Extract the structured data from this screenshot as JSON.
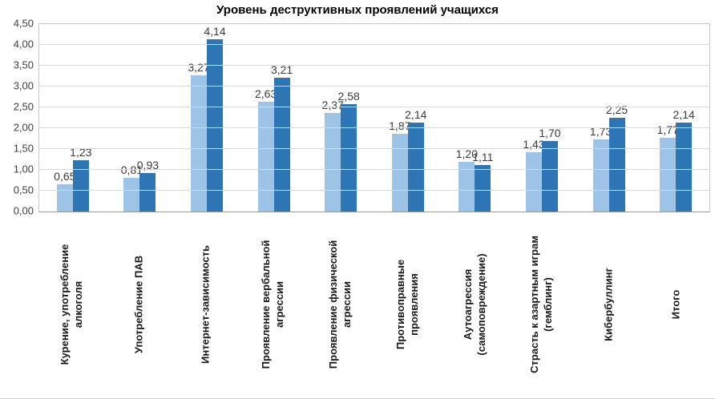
{
  "chart_data": {
    "type": "bar",
    "title": "Уровень деструктивных проявлений учащихся",
    "categories": [
      "Курение, употребление\nалкоголя",
      "Употребление ПАВ",
      "Интернет-зависимость",
      "Проявление вербальной\nагрессии",
      "Проявление физической\nагрессии",
      "Противоправные\nпроявления",
      "Аутоагрессия\n(самоповреждение)",
      "Страсть к азартным играм\n(гемблинг)",
      "Кибербуллинг",
      "Итого"
    ],
    "series": [
      {
        "name": "",
        "values": [
          0.65,
          0.81,
          3.27,
          2.63,
          2.37,
          1.87,
          1.2,
          1.43,
          1.73,
          1.77
        ],
        "labels": [
          "0,65",
          "0,81",
          "3,27",
          "2,63",
          "2,37",
          "1,87",
          "1,20",
          "1,43",
          "1,73",
          "1,77"
        ]
      },
      {
        "name": "",
        "values": [
          1.23,
          0.93,
          4.14,
          3.21,
          2.58,
          2.14,
          1.11,
          1.7,
          2.25,
          2.14
        ],
        "labels": [
          "1,23",
          "0,93",
          "4,14",
          "3,21",
          "2,58",
          "2,14",
          "1,11",
          "1,70",
          "2,25",
          "2,14"
        ]
      }
    ],
    "colors": [
      "#9DC3E6",
      "#2E75B6"
    ],
    "ylim": [
      0,
      4.5
    ],
    "ytick_step": 0.5,
    "ytick_labels": [
      "0,00",
      "0,50",
      "1,00",
      "1,50",
      "2,00",
      "2,50",
      "3,00",
      "3,50",
      "4,00",
      "4,50"
    ],
    "grid": true,
    "legend": "none",
    "decimal_separator": ","
  }
}
